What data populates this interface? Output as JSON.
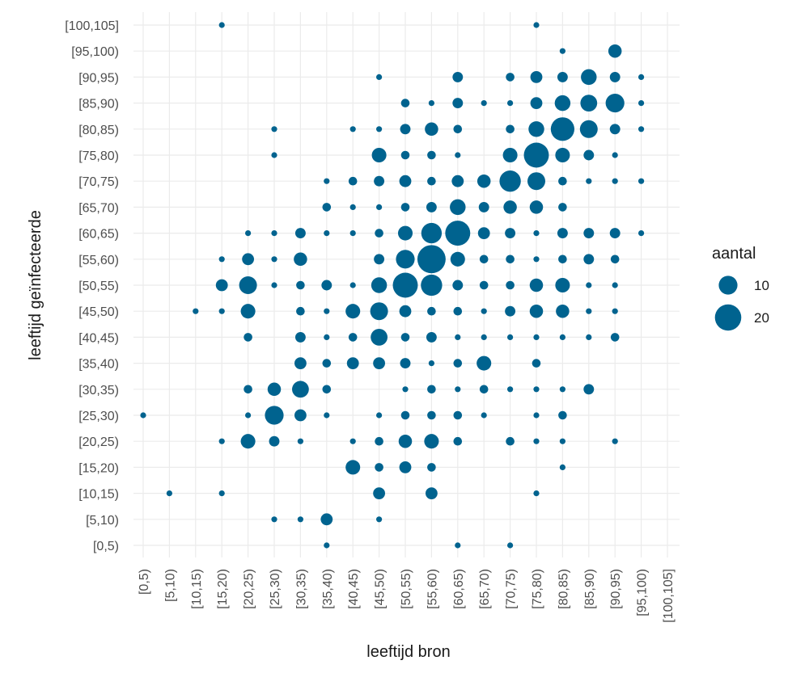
{
  "chart_data": {
    "type": "scatter",
    "title": "",
    "xlabel": "leeftijd bron",
    "ylabel": "leeftijd geïnfecteerde",
    "grid": true,
    "legend_position": "right",
    "color": "#00638f",
    "categories": [
      "[0,5)",
      "[5,10)",
      "[10,15)",
      "[15,20)",
      "[20,25)",
      "[25,30)",
      "[30,35)",
      "[35,40)",
      "[40,45)",
      "[45,50)",
      "[50,55)",
      "[55,60)",
      "[60,65)",
      "[65,70)",
      "[70,75)",
      "[75,80)",
      "[80,85)",
      "[85,90)",
      "[90,95)",
      "[95,100)",
      "[100,105]"
    ],
    "y_categories": [
      "[0,5)",
      "[5,10)",
      "[10,15)",
      "[15,20)",
      "[20,25)",
      "[25,30)",
      "[30,35)",
      "[35,40)",
      "[40,45)",
      "[45,50)",
      "[50,55)",
      "[55,60)",
      "[60,65)",
      "[65,70)",
      "[70,75)",
      "[75,80)",
      "[80,85)",
      "[85,90)",
      "[90,95)",
      "[95,100)",
      "[100,105]"
    ],
    "legend": {
      "title": "aantal",
      "entries": [
        {
          "label": "10",
          "value": 10
        },
        {
          "label": "20",
          "value": 20
        }
      ]
    },
    "points": [
      [
        0,
        5,
        1
      ],
      [
        1,
        2,
        1
      ],
      [
        2,
        9,
        1
      ],
      [
        3,
        2,
        1
      ],
      [
        3,
        4,
        1
      ],
      [
        3,
        9,
        1
      ],
      [
        3,
        10,
        4
      ],
      [
        3,
        11,
        1
      ],
      [
        3,
        20,
        1
      ],
      [
        4,
        4,
        6
      ],
      [
        4,
        5,
        1
      ],
      [
        4,
        6,
        2
      ],
      [
        4,
        8,
        2
      ],
      [
        4,
        9,
        6
      ],
      [
        4,
        10,
        9
      ],
      [
        4,
        11,
        4
      ],
      [
        4,
        12,
        1
      ],
      [
        5,
        1,
        1
      ],
      [
        5,
        4,
        3
      ],
      [
        5,
        5,
        10
      ],
      [
        5,
        6,
        5
      ],
      [
        5,
        10,
        1
      ],
      [
        5,
        11,
        1
      ],
      [
        5,
        12,
        1
      ],
      [
        5,
        15,
        1
      ],
      [
        5,
        16,
        1
      ],
      [
        6,
        1,
        1
      ],
      [
        6,
        4,
        1
      ],
      [
        6,
        5,
        4
      ],
      [
        6,
        6,
        8
      ],
      [
        6,
        7,
        4
      ],
      [
        6,
        8,
        3
      ],
      [
        6,
        9,
        2
      ],
      [
        6,
        10,
        2
      ],
      [
        6,
        11,
        5
      ],
      [
        6,
        12,
        3
      ],
      [
        7,
        0,
        1
      ],
      [
        7,
        1,
        4
      ],
      [
        7,
        5,
        1
      ],
      [
        7,
        6,
        2
      ],
      [
        7,
        7,
        2
      ],
      [
        7,
        8,
        1
      ],
      [
        7,
        9,
        1
      ],
      [
        7,
        10,
        3
      ],
      [
        7,
        12,
        1
      ],
      [
        7,
        13,
        2
      ],
      [
        7,
        14,
        1
      ],
      [
        8,
        3,
        6
      ],
      [
        8,
        4,
        1
      ],
      [
        8,
        7,
        4
      ],
      [
        8,
        8,
        2
      ],
      [
        8,
        9,
        6
      ],
      [
        8,
        10,
        1
      ],
      [
        8,
        12,
        1
      ],
      [
        8,
        13,
        1
      ],
      [
        8,
        14,
        2
      ],
      [
        8,
        16,
        1
      ],
      [
        9,
        1,
        1
      ],
      [
        9,
        2,
        4
      ],
      [
        9,
        3,
        2
      ],
      [
        9,
        4,
        2
      ],
      [
        9,
        5,
        1
      ],
      [
        9,
        7,
        4
      ],
      [
        9,
        8,
        8
      ],
      [
        9,
        9,
        9
      ],
      [
        9,
        10,
        7
      ],
      [
        9,
        11,
        3
      ],
      [
        9,
        12,
        2
      ],
      [
        9,
        13,
        1
      ],
      [
        9,
        14,
        3
      ],
      [
        9,
        15,
        6
      ],
      [
        9,
        16,
        1
      ],
      [
        9,
        18,
        1
      ],
      [
        10,
        3,
        4
      ],
      [
        10,
        4,
        5
      ],
      [
        10,
        5,
        2
      ],
      [
        10,
        6,
        1
      ],
      [
        10,
        7,
        3
      ],
      [
        10,
        8,
        2
      ],
      [
        10,
        9,
        4
      ],
      [
        10,
        10,
        18
      ],
      [
        10,
        11,
        10
      ],
      [
        10,
        12,
        6
      ],
      [
        10,
        13,
        2
      ],
      [
        10,
        14,
        4
      ],
      [
        10,
        15,
        2
      ],
      [
        10,
        16,
        3
      ],
      [
        10,
        17,
        2
      ],
      [
        11,
        2,
        4
      ],
      [
        11,
        3,
        2
      ],
      [
        11,
        4,
        6
      ],
      [
        11,
        5,
        2
      ],
      [
        11,
        6,
        2
      ],
      [
        11,
        7,
        1
      ],
      [
        11,
        8,
        3
      ],
      [
        11,
        9,
        2
      ],
      [
        11,
        10,
        13
      ],
      [
        11,
        11,
        23
      ],
      [
        11,
        12,
        12
      ],
      [
        11,
        13,
        3
      ],
      [
        11,
        14,
        2
      ],
      [
        11,
        15,
        2
      ],
      [
        11,
        16,
        5
      ],
      [
        11,
        17,
        1
      ],
      [
        12,
        0,
        1
      ],
      [
        12,
        4,
        2
      ],
      [
        12,
        5,
        2
      ],
      [
        12,
        6,
        1
      ],
      [
        12,
        7,
        2
      ],
      [
        12,
        8,
        1
      ],
      [
        12,
        9,
        2
      ],
      [
        12,
        10,
        3
      ],
      [
        12,
        11,
        6
      ],
      [
        12,
        12,
        18
      ],
      [
        12,
        13,
        7
      ],
      [
        12,
        14,
        4
      ],
      [
        12,
        15,
        1
      ],
      [
        12,
        16,
        2
      ],
      [
        12,
        17,
        3
      ],
      [
        12,
        18,
        3
      ],
      [
        13,
        5,
        1
      ],
      [
        13,
        6,
        2
      ],
      [
        13,
        7,
        6
      ],
      [
        13,
        8,
        1
      ],
      [
        13,
        9,
        1
      ],
      [
        13,
        10,
        2
      ],
      [
        13,
        11,
        2
      ],
      [
        13,
        12,
        4
      ],
      [
        13,
        13,
        3
      ],
      [
        13,
        14,
        5
      ],
      [
        13,
        17,
        1
      ],
      [
        14,
        0,
        1
      ],
      [
        14,
        4,
        2
      ],
      [
        14,
        6,
        1
      ],
      [
        14,
        8,
        1
      ],
      [
        14,
        9,
        3
      ],
      [
        14,
        10,
        2
      ],
      [
        14,
        11,
        2
      ],
      [
        14,
        12,
        3
      ],
      [
        14,
        13,
        5
      ],
      [
        14,
        14,
        13
      ],
      [
        14,
        15,
        6
      ],
      [
        14,
        16,
        2
      ],
      [
        14,
        17,
        1
      ],
      [
        14,
        18,
        2
      ],
      [
        15,
        2,
        1
      ],
      [
        15,
        4,
        1
      ],
      [
        15,
        5,
        1
      ],
      [
        15,
        6,
        1
      ],
      [
        15,
        7,
        2
      ],
      [
        15,
        8,
        1
      ],
      [
        15,
        9,
        5
      ],
      [
        15,
        10,
        5
      ],
      [
        15,
        11,
        1
      ],
      [
        15,
        12,
        1
      ],
      [
        15,
        13,
        5
      ],
      [
        15,
        14,
        9
      ],
      [
        15,
        15,
        18
      ],
      [
        15,
        16,
        7
      ],
      [
        15,
        17,
        4
      ],
      [
        15,
        18,
        4
      ],
      [
        15,
        20,
        1
      ],
      [
        16,
        3,
        1
      ],
      [
        16,
        4,
        1
      ],
      [
        16,
        5,
        2
      ],
      [
        16,
        6,
        1
      ],
      [
        16,
        8,
        1
      ],
      [
        16,
        9,
        5
      ],
      [
        16,
        10,
        6
      ],
      [
        16,
        11,
        2
      ],
      [
        16,
        12,
        3
      ],
      [
        16,
        13,
        2
      ],
      [
        16,
        14,
        2
      ],
      [
        16,
        15,
        6
      ],
      [
        16,
        16,
        16
      ],
      [
        16,
        17,
        7
      ],
      [
        16,
        18,
        3
      ],
      [
        16,
        19,
        1
      ],
      [
        17,
        6,
        3
      ],
      [
        17,
        8,
        1
      ],
      [
        17,
        9,
        1
      ],
      [
        17,
        10,
        1
      ],
      [
        17,
        11,
        3
      ],
      [
        17,
        12,
        3
      ],
      [
        17,
        14,
        1
      ],
      [
        17,
        15,
        3
      ],
      [
        17,
        16,
        9
      ],
      [
        17,
        17,
        8
      ],
      [
        17,
        18,
        7
      ],
      [
        18,
        4,
        1
      ],
      [
        18,
        8,
        2
      ],
      [
        18,
        9,
        1
      ],
      [
        18,
        10,
        1
      ],
      [
        18,
        11,
        2
      ],
      [
        18,
        12,
        3
      ],
      [
        18,
        14,
        1
      ],
      [
        18,
        15,
        1
      ],
      [
        18,
        16,
        3
      ],
      [
        18,
        17,
        10
      ],
      [
        18,
        18,
        3
      ],
      [
        18,
        19,
        5
      ],
      [
        19,
        12,
        1
      ],
      [
        19,
        14,
        1
      ],
      [
        19,
        16,
        1
      ],
      [
        19,
        17,
        1
      ],
      [
        19,
        18,
        1
      ]
    ]
  }
}
